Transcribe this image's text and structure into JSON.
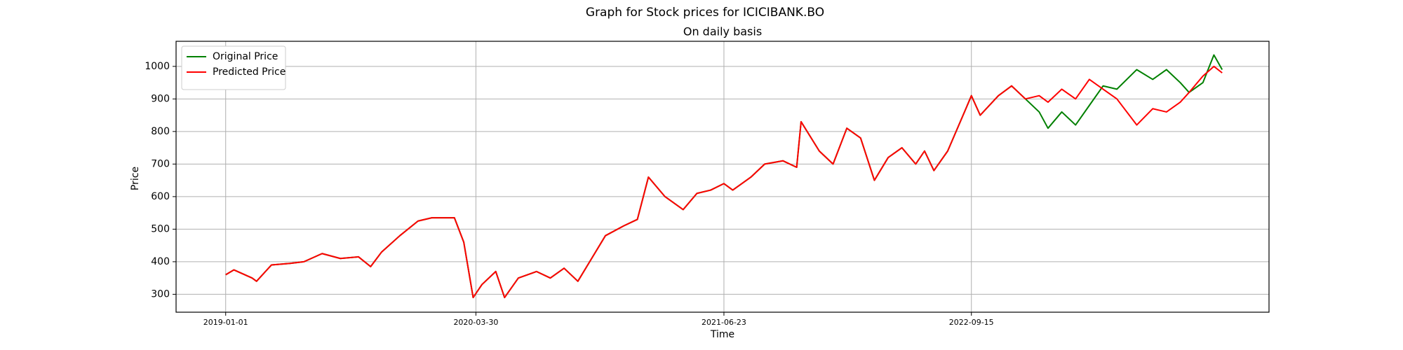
{
  "chart_data": {
    "type": "line",
    "title": "Graph for Stock prices for ICICIBANK.BO",
    "subtitle": "On daily basis",
    "x_label": "Time",
    "y_label": "Price",
    "x": [
      "2019-01-01",
      "2019-01-16",
      "2019-02-18",
      "2019-02-26",
      "2019-03-25",
      "2019-04-28",
      "2019-05-23",
      "2019-06-25",
      "2019-07-28",
      "2019-08-30",
      "2019-09-21",
      "2019-10-11",
      "2019-11-13",
      "2019-12-16",
      "2020-01-10",
      "2020-02-20",
      "2020-03-08",
      "2020-03-25",
      "2020-04-10",
      "2020-05-05",
      "2020-05-21",
      "2020-06-15",
      "2020-07-18",
      "2020-08-12",
      "2020-09-06",
      "2020-10-01",
      "2020-10-26",
      "2020-11-20",
      "2020-12-23",
      "2021-01-17",
      "2021-02-06",
      "2021-03-08",
      "2021-04-10",
      "2021-05-05",
      "2021-05-30",
      "2021-06-23",
      "2021-07-09",
      "2021-08-11",
      "2021-09-05",
      "2021-10-08",
      "2021-11-02",
      "2021-11-10",
      "2021-12-13",
      "2022-01-07",
      "2022-02-01",
      "2022-02-26",
      "2022-03-23",
      "2022-04-17",
      "2022-05-12",
      "2022-06-06",
      "2022-06-22",
      "2022-07-09",
      "2022-08-03",
      "2022-09-05",
      "2022-09-15",
      "2022-10-01",
      "2022-11-03",
      "2022-11-27",
      "2022-12-22",
      "2023-01-16",
      "2023-02-01",
      "2023-02-26",
      "2023-03-23",
      "2023-04-17",
      "2023-05-12",
      "2023-06-06",
      "2023-07-12",
      "2023-08-10",
      "2023-09-04",
      "2023-09-29",
      "2023-10-15",
      "2023-11-09",
      "2023-11-29",
      "2023-12-14"
    ],
    "series": [
      {
        "name": "Original Price",
        "color": "#008000",
        "values": [
          360,
          375,
          350,
          340,
          390,
          395,
          400,
          425,
          410,
          415,
          385,
          430,
          480,
          525,
          535,
          535,
          460,
          290,
          330,
          370,
          290,
          350,
          370,
          350,
          380,
          340,
          410,
          480,
          510,
          530,
          660,
          600,
          560,
          610,
          620,
          640,
          620,
          660,
          700,
          710,
          690,
          830,
          740,
          700,
          810,
          780,
          650,
          720,
          750,
          700,
          740,
          680,
          740,
          870,
          910,
          850,
          910,
          940,
          900,
          860,
          810,
          860,
          820,
          880,
          940,
          930,
          990,
          960,
          990,
          950,
          920,
          950,
          1035,
          990
        ]
      },
      {
        "name": "Predicted Price",
        "color": "#ff0000",
        "values": [
          360,
          375,
          350,
          340,
          390,
          395,
          400,
          425,
          410,
          415,
          385,
          430,
          480,
          525,
          535,
          535,
          460,
          290,
          330,
          370,
          290,
          350,
          370,
          350,
          380,
          340,
          410,
          480,
          510,
          530,
          660,
          600,
          560,
          610,
          620,
          640,
          620,
          660,
          700,
          710,
          690,
          830,
          740,
          700,
          810,
          780,
          650,
          720,
          750,
          700,
          740,
          680,
          740,
          870,
          910,
          850,
          910,
          940,
          900,
          910,
          890,
          930,
          900,
          960,
          930,
          900,
          820,
          870,
          860,
          890,
          920,
          970,
          1000,
          980
        ]
      }
    ],
    "xlim": [
      "2018-10-03",
      "2024-03-08"
    ],
    "xticks": [
      "2019-01-01",
      "2020-03-30",
      "2021-06-23",
      "2022-09-15"
    ],
    "ylim": [
      245,
      1077
    ],
    "yticks": [
      300,
      400,
      500,
      600,
      700,
      800,
      900,
      1000
    ],
    "grid": true,
    "legend": "upper-left"
  }
}
